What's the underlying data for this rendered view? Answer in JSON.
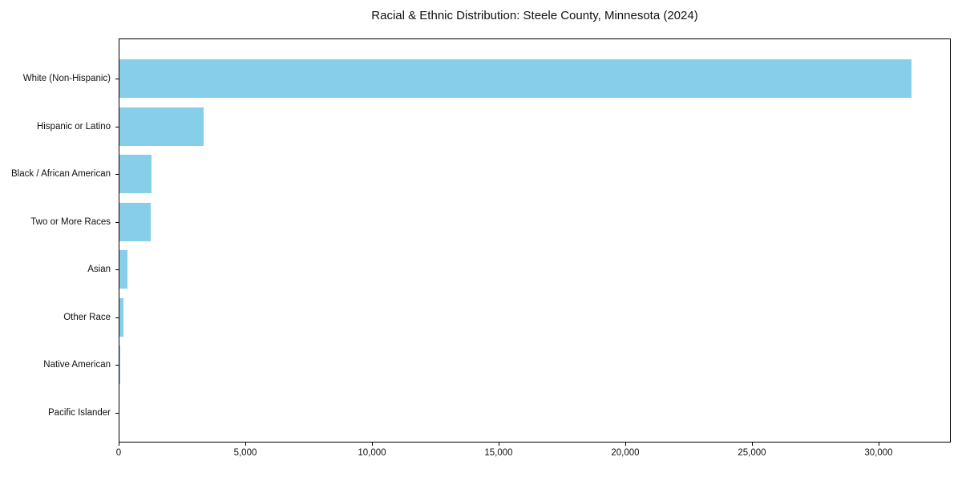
{
  "chart_data": {
    "type": "bar",
    "orientation": "horizontal",
    "title": "Racial & Ethnic Distribution: Steele County, Minnesota (2024)",
    "categories": [
      "White (Non-Hispanic)",
      "Hispanic or Latino",
      "Black / African American",
      "Two or More Races",
      "Asian",
      "Other Race",
      "Native American",
      "Pacific Islander"
    ],
    "values": [
      31270,
      3350,
      1280,
      1250,
      320,
      160,
      40,
      10
    ],
    "xlabel": "",
    "ylabel": "",
    "xlim": [
      0,
      32850
    ],
    "xticks": [
      0,
      5000,
      10000,
      15000,
      20000,
      25000,
      30000
    ],
    "xticklabels": [
      "0",
      "5,000",
      "10,000",
      "15,000",
      "20,000",
      "25,000",
      "30,000"
    ],
    "bar_color": "#87CEEB",
    "axis_color": "#000000",
    "background_color": "#ffffff",
    "grid": false,
    "legend": null
  }
}
